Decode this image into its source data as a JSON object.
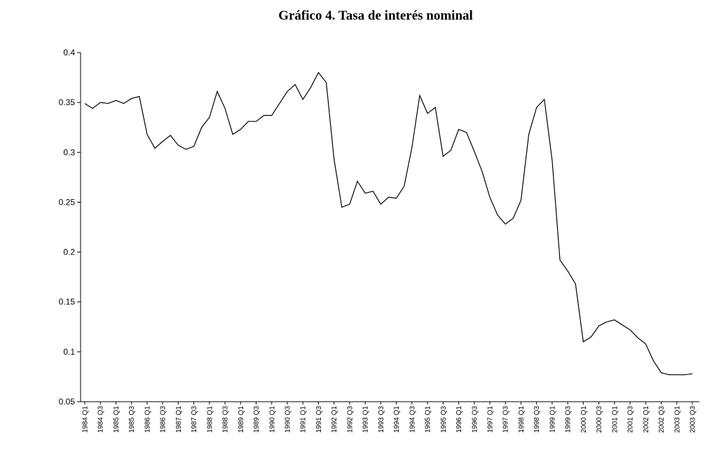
{
  "chart_data": {
    "type": "line",
    "title": "Gráfico 4. Tasa de interés nominal",
    "categories": [
      "1984 Q1",
      null,
      "1984 Q3",
      null,
      "1985 Q1",
      null,
      "1985 Q3",
      null,
      "1986 Q1",
      null,
      "1986 Q3",
      null,
      "1987 Q1",
      null,
      "1987 Q3",
      null,
      "1988 Q1",
      null,
      "1988 Q3",
      null,
      "1989 Q1",
      null,
      "1989 Q3",
      null,
      "1990 Q1",
      null,
      "1990 Q3",
      null,
      "1991 Q1",
      null,
      "1991 Q3",
      null,
      "1992 Q1",
      null,
      "1992 Q3",
      null,
      "1993 Q1",
      null,
      "1993 Q3",
      null,
      "1994 Q1",
      null,
      "1994 Q3",
      null,
      "1995 Q1",
      null,
      "1995 Q3",
      null,
      "1996 Q1",
      null,
      "1996 Q3",
      null,
      "1997 Q1",
      null,
      "1997 Q3",
      null,
      "1998 Q1",
      null,
      "1998 Q3",
      null,
      "1999 Q1",
      null,
      "1999 Q3",
      null,
      "2000 Q1",
      null,
      "2000 Q3",
      null,
      "2001 Q1",
      null,
      "2001 Q3",
      null,
      "2002 Q1",
      null,
      "2002 Q3",
      null,
      "2003 Q1",
      null,
      "2003 Q3"
    ],
    "values": [
      0.349,
      0.344,
      0.35,
      0.349,
      0.352,
      0.349,
      0.354,
      0.356,
      0.318,
      0.304,
      0.311,
      0.317,
      0.307,
      0.303,
      0.306,
      0.325,
      0.335,
      0.361,
      0.344,
      0.318,
      0.323,
      0.331,
      0.331,
      0.337,
      0.337,
      0.349,
      0.361,
      0.368,
      0.353,
      0.365,
      0.38,
      0.37,
      0.293,
      0.245,
      0.248,
      0.271,
      0.259,
      0.261,
      0.248,
      0.255,
      0.254,
      0.266,
      0.305,
      0.357,
      0.339,
      0.345,
      0.296,
      0.302,
      0.323,
      0.32,
      0.301,
      0.281,
      0.255,
      0.237,
      0.228,
      0.234,
      0.252,
      0.318,
      0.345,
      0.353,
      0.292,
      0.192,
      0.181,
      0.168,
      0.11,
      0.115,
      0.126,
      0.13,
      0.132,
      0.127,
      0.122,
      0.114,
      0.108,
      0.091,
      0.079,
      0.077,
      0.077,
      0.077,
      0.078
    ],
    "color": "#000000",
    "ylim": [
      0.05,
      0.4
    ],
    "yticks": [
      0.05,
      0.1,
      0.15,
      0.2,
      0.25,
      0.3,
      0.35,
      0.4
    ]
  }
}
